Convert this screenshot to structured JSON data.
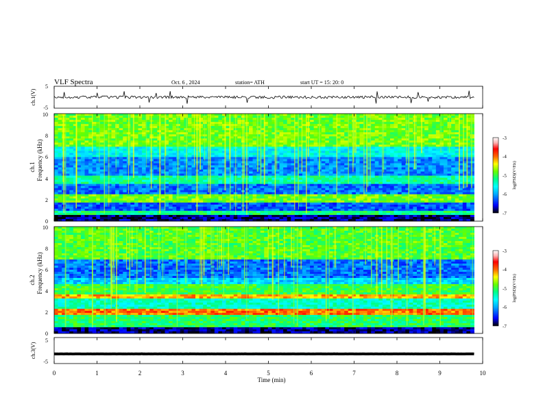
{
  "header": {
    "title": "VLF  Spectra",
    "date": "Oct. 6  , 2024",
    "station": "station= ATH",
    "start_ut": "start  UT  =   15: 20: 0"
  },
  "colorbar": {
    "label": "log(PSD)(V²/Hz)",
    "ticks": [
      "-3",
      "-4",
      "-5",
      "-6",
      "-7"
    ],
    "colors": [
      "#000000",
      "#0000ff",
      "#00aaff",
      "#00ffff",
      "#00ff88",
      "#66ff00",
      "#ffff00",
      "#ff6600",
      "#ff0000",
      "#ffb0b0",
      "#ffffff"
    ]
  },
  "chart_data": [
    {
      "type": "line",
      "name": "ch1-waveform",
      "ylabel": "ch.1(V)",
      "ylim": [
        -5,
        5
      ],
      "yticks": [
        "5",
        "-5"
      ],
      "xlim": [
        0,
        10
      ],
      "approx_level": 0
    },
    {
      "type": "heatmap",
      "name": "ch2-spectrogram",
      "panel_label": "ch.1",
      "ylabel": "Frequency  (kHz)",
      "ylim": [
        0,
        10
      ],
      "yticks": [
        "10",
        "8",
        "6",
        "4",
        "2",
        "0"
      ],
      "xlim": [
        0,
        9.8
      ],
      "bands_khz": [
        {
          "from": 0,
          "to": 0.5,
          "level": -6.8
        },
        {
          "from": 0.5,
          "to": 1.0,
          "level": -5.2
        },
        {
          "from": 1.0,
          "to": 1.8,
          "level": -6.3
        },
        {
          "from": 1.8,
          "to": 2.5,
          "level": -4.8
        },
        {
          "from": 2.5,
          "to": 3.5,
          "level": -6.2
        },
        {
          "from": 3.5,
          "to": 4.3,
          "level": -5.3
        },
        {
          "from": 4.3,
          "to": 6.0,
          "level": -6.1
        },
        {
          "from": 6.0,
          "to": 7.0,
          "level": -5.6
        },
        {
          "from": 7.0,
          "to": 10.0,
          "level": -4.8
        }
      ]
    },
    {
      "type": "heatmap",
      "name": "ch3-spectrogram",
      "panel_label": "ch.2",
      "ylabel": "Frequency  (kHz)",
      "ylim": [
        0,
        10
      ],
      "yticks": [
        "10",
        "8",
        "6",
        "4",
        "2",
        "0"
      ],
      "xlim": [
        0,
        9.8
      ],
      "bands_khz": [
        {
          "from": 0,
          "to": 0.5,
          "level": -6.8
        },
        {
          "from": 0.5,
          "to": 1.8,
          "level": -5.1
        },
        {
          "from": 1.8,
          "to": 2.3,
          "level": -4.0
        },
        {
          "from": 2.3,
          "to": 3.3,
          "level": -5.4
        },
        {
          "from": 3.3,
          "to": 3.7,
          "level": -4.2
        },
        {
          "from": 3.7,
          "to": 4.6,
          "level": -5.0
        },
        {
          "from": 4.6,
          "to": 5.2,
          "level": -5.8
        },
        {
          "from": 5.2,
          "to": 7.0,
          "level": -6.2
        },
        {
          "from": 7.0,
          "to": 10.0,
          "level": -4.9
        }
      ]
    },
    {
      "type": "line",
      "name": "ch3-waveform",
      "ylabel": "ch.3(V)",
      "ylim": [
        -5,
        5
      ],
      "yticks": [
        "5",
        "0",
        "-5"
      ],
      "xlim": [
        0,
        10
      ],
      "approx_level": -1.3
    }
  ],
  "xaxis": {
    "label": "Time  (min)",
    "ticks": [
      "0",
      "1",
      "2",
      "3",
      "4",
      "5",
      "6",
      "7",
      "8",
      "9",
      "10"
    ],
    "range": [
      0,
      10
    ]
  }
}
